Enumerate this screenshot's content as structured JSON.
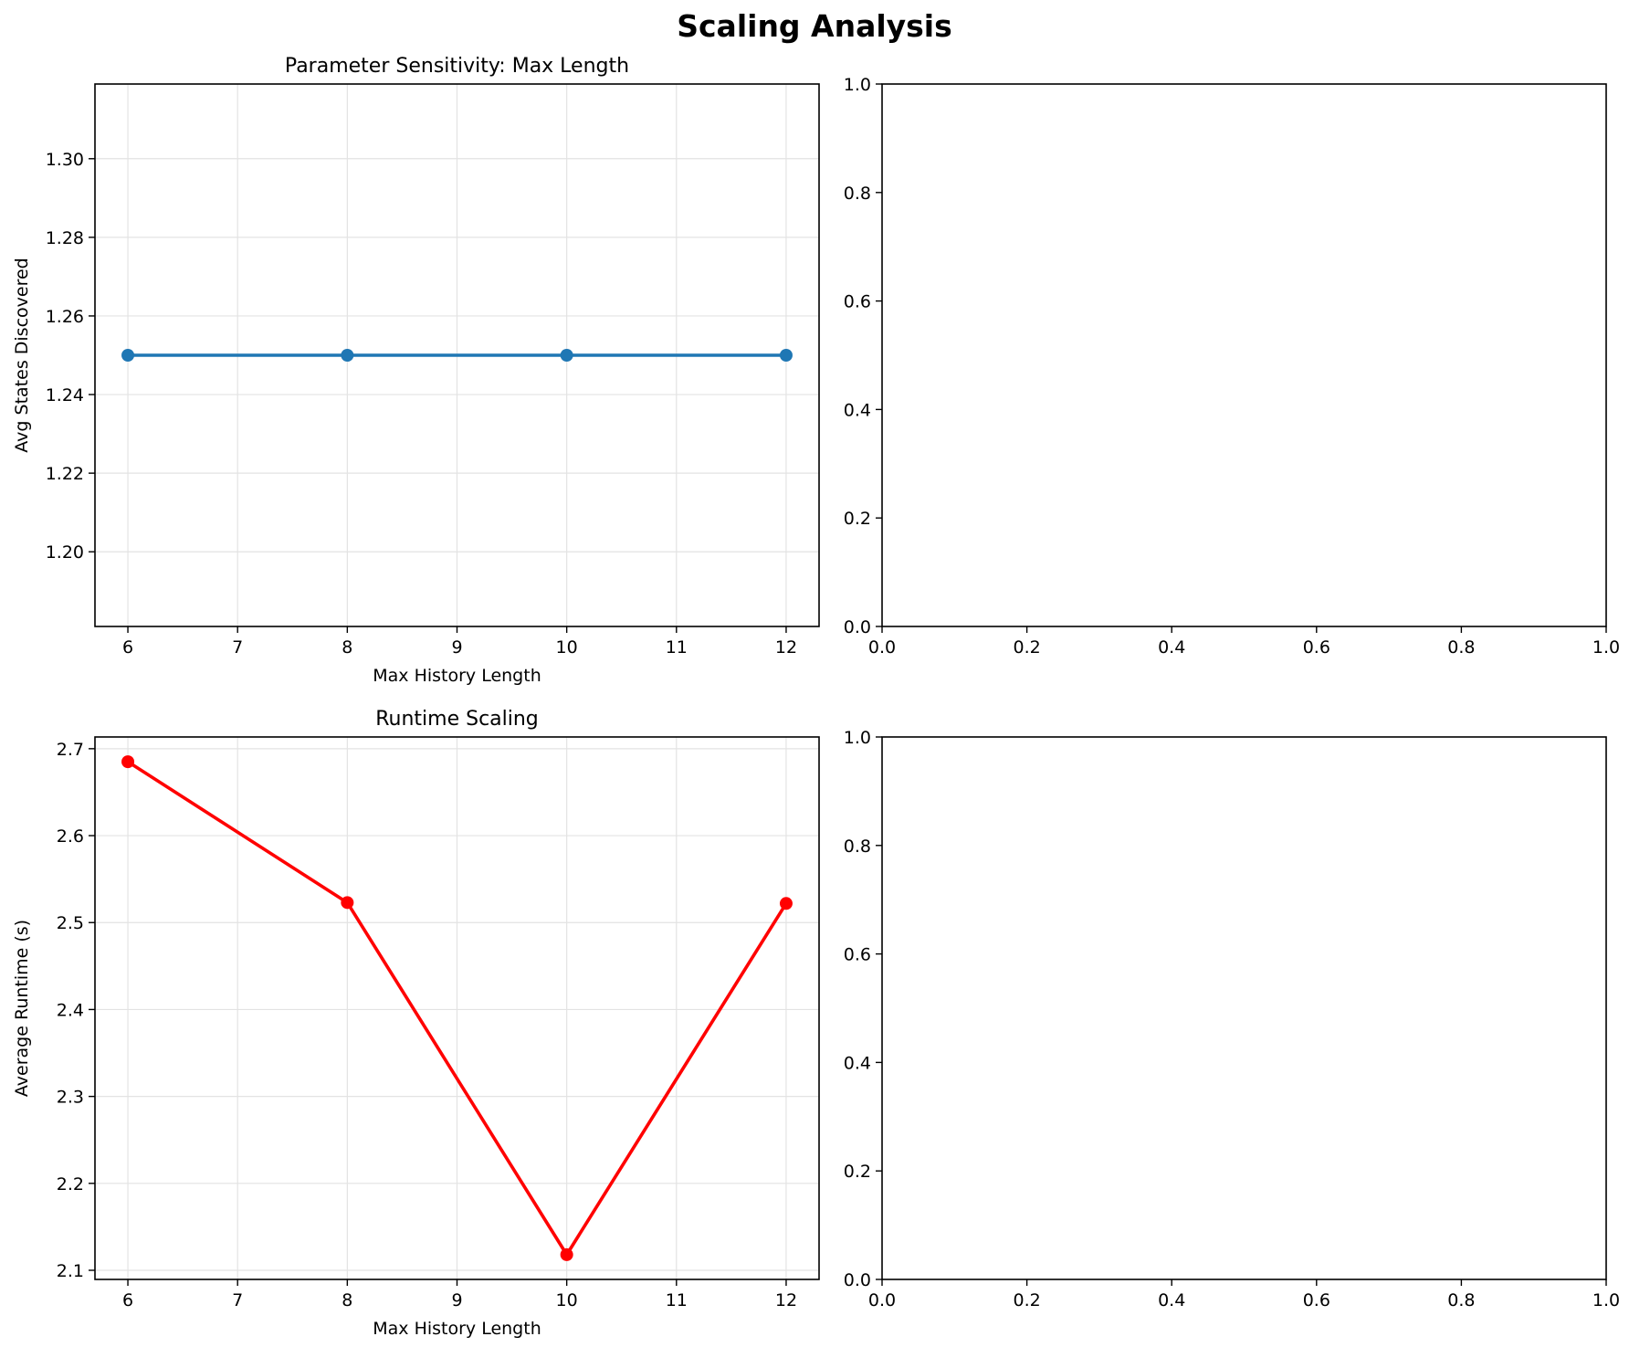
{
  "figure": {
    "suptitle": "Scaling Analysis"
  },
  "chart_data": [
    {
      "type": "line",
      "title": "Parameter Sensitivity: Max Length",
      "xlabel": "Max History Length",
      "ylabel": "Avg States Discovered",
      "x": [
        6,
        8,
        10,
        12
      ],
      "series": [
        {
          "values": [
            1.25,
            1.25,
            1.25,
            1.25
          ],
          "color": "#1f77b4"
        }
      ],
      "xlim": [
        5.7,
        12.3
      ],
      "ylim": [
        1.181,
        1.319
      ],
      "xticks": [
        6,
        7,
        8,
        9,
        10,
        11,
        12
      ],
      "yticks": [
        1.2,
        1.22,
        1.24,
        1.26,
        1.28,
        1.3
      ],
      "ytick_labels": [
        "1.20",
        "1.22",
        "1.24",
        "1.26",
        "1.28",
        "1.30"
      ],
      "grid": true
    },
    {
      "type": "line",
      "title": "",
      "xlabel": "",
      "ylabel": "",
      "series": [],
      "xlim": [
        0,
        1
      ],
      "ylim": [
        0,
        1
      ],
      "xticks": [
        0,
        0.2,
        0.4,
        0.6,
        0.8,
        1.0
      ],
      "xtick_labels": [
        "0.0",
        "0.2",
        "0.4",
        "0.6",
        "0.8",
        "1.0"
      ],
      "yticks": [
        0,
        0.2,
        0.4,
        0.6,
        0.8,
        1.0
      ],
      "ytick_labels": [
        "0.0",
        "0.2",
        "0.4",
        "0.6",
        "0.8",
        "1.0"
      ],
      "grid": false
    },
    {
      "type": "line",
      "title": "Runtime Scaling",
      "xlabel": "Max History Length",
      "ylabel": "Average Runtime (s)",
      "x": [
        6,
        8,
        10,
        12
      ],
      "series": [
        {
          "values": [
            2.685,
            2.523,
            2.118,
            2.522
          ],
          "color": "#ff0000"
        }
      ],
      "xlim": [
        5.7,
        12.3
      ],
      "ylim": [
        2.0895,
        2.7135
      ],
      "xticks": [
        6,
        7,
        8,
        9,
        10,
        11,
        12
      ],
      "yticks": [
        2.1,
        2.2,
        2.3,
        2.4,
        2.5,
        2.6,
        2.7
      ],
      "ytick_labels": [
        "2.1",
        "2.2",
        "2.3",
        "2.4",
        "2.5",
        "2.6",
        "2.7"
      ],
      "grid": true
    },
    {
      "type": "line",
      "title": "",
      "xlabel": "",
      "ylabel": "",
      "series": [],
      "xlim": [
        0,
        1
      ],
      "ylim": [
        0,
        1
      ],
      "xticks": [
        0,
        0.2,
        0.4,
        0.6,
        0.8,
        1.0
      ],
      "xtick_labels": [
        "0.0",
        "0.2",
        "0.4",
        "0.6",
        "0.8",
        "1.0"
      ],
      "yticks": [
        0,
        0.2,
        0.4,
        0.6,
        0.8,
        1.0
      ],
      "ytick_labels": [
        "0.0",
        "0.2",
        "0.4",
        "0.6",
        "0.8",
        "1.0"
      ],
      "grid": false
    }
  ]
}
